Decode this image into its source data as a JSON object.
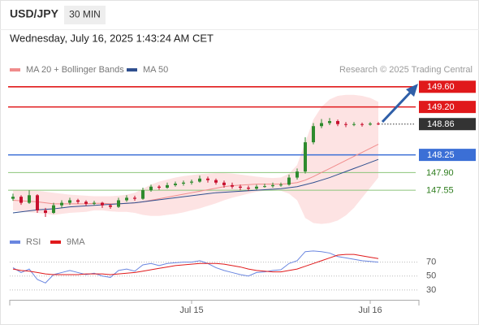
{
  "chart_data": {
    "type": "candlestick",
    "symbol": "USD/JPY",
    "timeframe": "30 MIN",
    "timestamp": "Wednesday, July 16, 2025 1:43:24 AM CET",
    "credit": "Research © 2025 Trading Central",
    "categories": [
      null,
      null,
      null,
      null,
      null,
      null,
      null,
      null,
      null,
      null,
      null,
      null,
      null,
      null,
      null,
      null,
      null,
      null,
      null,
      null,
      null,
      null,
      "Jul 15",
      null,
      null,
      null,
      null,
      null,
      null,
      null,
      null,
      null,
      null,
      null,
      null,
      null,
      null,
      null,
      null,
      null,
      null,
      null,
      null,
      null,
      "Jul 16",
      null
    ],
    "up_color": "#2e8b2e",
    "down_color": "#c8102e",
    "ohlc": [
      [
        147.38,
        147.48,
        147.34,
        147.42
      ],
      [
        147.42,
        147.45,
        147.26,
        147.3
      ],
      [
        147.3,
        147.55,
        147.28,
        147.45
      ],
      [
        147.45,
        147.47,
        147.1,
        147.15
      ],
      [
        147.15,
        147.2,
        147.02,
        147.1
      ],
      [
        147.1,
        147.3,
        147.08,
        147.25
      ],
      [
        147.25,
        147.35,
        147.2,
        147.3
      ],
      [
        147.3,
        147.4,
        147.26,
        147.35
      ],
      [
        147.35,
        147.38,
        147.28,
        147.32
      ],
      [
        147.32,
        147.35,
        147.24,
        147.28
      ],
      [
        147.28,
        147.34,
        147.25,
        147.3
      ],
      [
        147.3,
        147.32,
        147.2,
        147.25
      ],
      [
        147.25,
        147.28,
        147.18,
        147.22
      ],
      [
        147.22,
        147.4,
        147.2,
        147.35
      ],
      [
        147.35,
        147.45,
        147.32,
        147.4
      ],
      [
        147.4,
        147.44,
        147.34,
        147.38
      ],
      [
        147.38,
        147.6,
        147.36,
        147.55
      ],
      [
        147.55,
        147.66,
        147.52,
        147.62
      ],
      [
        147.62,
        147.65,
        147.56,
        147.6
      ],
      [
        147.6,
        147.7,
        147.58,
        147.65
      ],
      [
        147.65,
        147.72,
        147.62,
        147.68
      ],
      [
        147.68,
        147.74,
        147.64,
        147.7
      ],
      [
        147.7,
        147.76,
        147.66,
        147.72
      ],
      [
        147.72,
        147.84,
        147.7,
        147.78
      ],
      [
        147.78,
        147.82,
        147.7,
        147.75
      ],
      [
        147.75,
        147.78,
        147.66,
        147.7
      ],
      [
        147.7,
        147.74,
        147.6,
        147.65
      ],
      [
        147.65,
        147.7,
        147.58,
        147.62
      ],
      [
        147.62,
        147.66,
        147.55,
        147.6
      ],
      [
        147.6,
        147.64,
        147.54,
        147.58
      ],
      [
        147.58,
        147.66,
        147.56,
        147.62
      ],
      [
        147.62,
        147.68,
        147.6,
        147.63
      ],
      [
        147.63,
        147.7,
        147.6,
        147.65
      ],
      [
        147.65,
        147.7,
        147.62,
        147.66
      ],
      [
        147.66,
        147.86,
        147.64,
        147.8
      ],
      [
        147.8,
        147.98,
        147.76,
        147.92
      ],
      [
        147.92,
        148.6,
        147.88,
        148.5
      ],
      [
        148.5,
        148.88,
        148.46,
        148.82
      ],
      [
        148.82,
        148.96,
        148.78,
        148.88
      ],
      [
        148.88,
        148.98,
        148.84,
        148.92
      ],
      [
        148.92,
        148.95,
        148.82,
        148.86
      ],
      [
        148.86,
        148.9,
        148.8,
        148.85
      ],
      [
        148.85,
        148.9,
        148.82,
        148.86
      ],
      [
        148.86,
        148.89,
        148.81,
        148.85
      ],
      [
        148.85,
        148.9,
        148.83,
        148.87
      ],
      [
        148.87,
        148.9,
        148.84,
        148.86
      ]
    ],
    "overlays": [
      {
        "name": "MA 20 + Bollinger Bands",
        "color": "#f08c8c",
        "band_color": "#fde3e3",
        "values": [
          147.35,
          147.34,
          147.33,
          147.32,
          147.3,
          147.28,
          147.28,
          147.28,
          147.28,
          147.28,
          147.29,
          147.29,
          147.28,
          147.28,
          147.29,
          147.3,
          147.32,
          147.35,
          147.38,
          147.41,
          147.44,
          147.47,
          147.5,
          147.53,
          147.56,
          147.59,
          147.62,
          147.64,
          147.65,
          147.66,
          147.67,
          147.67,
          147.67,
          147.67,
          147.68,
          147.7,
          147.75,
          147.82,
          147.9,
          147.98,
          148.06,
          148.14,
          148.22,
          148.3,
          148.38,
          148.46
        ],
        "upper": [
          147.55,
          147.55,
          147.55,
          147.54,
          147.52,
          147.5,
          147.48,
          147.46,
          147.45,
          147.44,
          147.43,
          147.43,
          147.43,
          147.44,
          147.46,
          147.5,
          147.58,
          147.66,
          147.72,
          147.76,
          147.8,
          147.83,
          147.85,
          147.87,
          147.88,
          147.89,
          147.89,
          147.88,
          147.86,
          147.84,
          147.82,
          147.8,
          147.79,
          147.8,
          147.88,
          148.05,
          148.5,
          148.95,
          149.2,
          149.35,
          149.42,
          149.44,
          149.44,
          149.42,
          149.38,
          149.3
        ],
        "lower": [
          147.15,
          147.13,
          147.11,
          147.1,
          147.08,
          147.06,
          147.08,
          147.1,
          147.11,
          147.12,
          147.15,
          147.15,
          147.13,
          147.12,
          147.12,
          147.1,
          147.06,
          147.04,
          147.04,
          147.06,
          147.08,
          147.11,
          147.15,
          147.19,
          147.24,
          147.29,
          147.35,
          147.4,
          147.44,
          147.48,
          147.52,
          147.54,
          147.55,
          147.54,
          147.48,
          147.35,
          147.0,
          146.9,
          146.88,
          146.9,
          146.95,
          147.05,
          147.2,
          147.4,
          147.6,
          147.8
        ]
      },
      {
        "name": "MA 50",
        "color": "#2f4f8f",
        "values": [
          147.1,
          147.12,
          147.14,
          147.16,
          147.17,
          147.18,
          147.2,
          147.22,
          147.23,
          147.24,
          147.25,
          147.26,
          147.27,
          147.28,
          147.29,
          147.3,
          147.32,
          147.34,
          147.36,
          147.38,
          147.4,
          147.42,
          147.44,
          147.46,
          147.48,
          147.5,
          147.51,
          147.52,
          147.53,
          147.54,
          147.55,
          147.56,
          147.57,
          147.58,
          147.6,
          147.62,
          147.66,
          147.7,
          147.75,
          147.8,
          147.86,
          147.92,
          147.98,
          148.04,
          148.1,
          148.16
        ]
      }
    ],
    "ylim": [
      146.73,
      149.79
    ],
    "levels": [
      {
        "value": 149.6,
        "label": "149.60",
        "color": "#e0191b",
        "line": "solid",
        "badge": true
      },
      {
        "value": 149.2,
        "label": "149.20",
        "color": "#e0191b",
        "line": "solid",
        "badge": true
      },
      {
        "value": 148.86,
        "label": "148.86",
        "color": "#333333",
        "line": "dotted",
        "badge": true
      },
      {
        "value": 148.25,
        "label": "148.25",
        "color": "#3b6fd6",
        "line": "solid",
        "badge": true
      },
      {
        "value": 147.9,
        "label": "147.90",
        "color": "#8cc47a",
        "text_color": "#2e7d1e",
        "line": "solid",
        "badge": false
      },
      {
        "value": 147.55,
        "label": "147.55",
        "color": "#8cc47a",
        "text_color": "#2e7d1e",
        "line": "solid",
        "badge": false
      }
    ],
    "rsi": {
      "ylim": [
        17,
        87
      ],
      "yticks": [
        30,
        50,
        70
      ],
      "series": [
        {
          "name": "RSI",
          "color": "#6a86e0",
          "values": [
            62,
            55,
            60,
            45,
            40,
            52,
            55,
            58,
            55,
            52,
            54,
            50,
            48,
            58,
            60,
            57,
            66,
            68,
            65,
            68,
            69,
            70,
            70,
            72,
            68,
            62,
            58,
            55,
            52,
            50,
            55,
            56,
            58,
            59,
            68,
            72,
            85,
            86,
            85,
            83,
            78,
            76,
            74,
            72,
            71,
            70
          ]
        },
        {
          "name": "9MA",
          "color": "#e0191b",
          "values": [
            60,
            58,
            57,
            55,
            53,
            52,
            52,
            52,
            52,
            53,
            53,
            53,
            52,
            53,
            54,
            55,
            57,
            59,
            61,
            63,
            65,
            66,
            67,
            68,
            68,
            68,
            67,
            65,
            63,
            60,
            58,
            57,
            56,
            56,
            58,
            60,
            64,
            68,
            72,
            76,
            80,
            81,
            81,
            79,
            77,
            75
          ]
        }
      ]
    }
  }
}
